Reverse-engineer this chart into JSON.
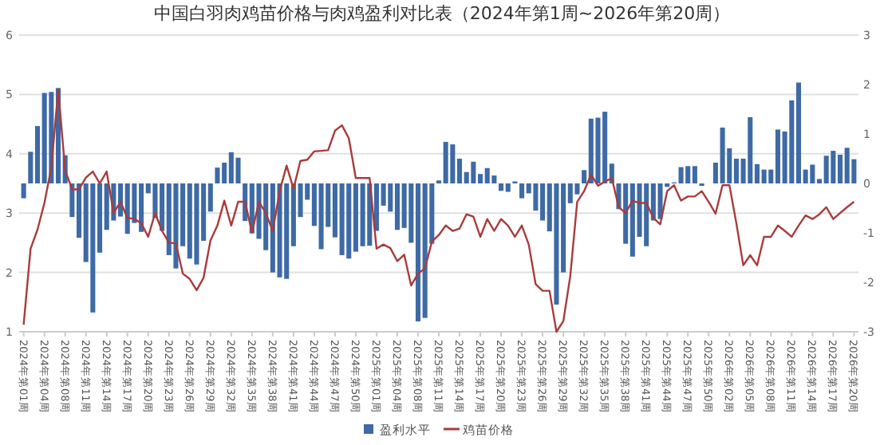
{
  "chart_data": {
    "type": "bar",
    "title": "中国白羽肉鸡苗价格与肉鸡盈利对比表（2024年第1周~2026年第20周）",
    "categories": [
      "2024年第01周",
      null,
      null,
      "2024年第04周",
      null,
      null,
      "2024年第08周",
      null,
      null,
      "2024年第11周",
      null,
      null,
      "2024年第14周",
      null,
      null,
      "2024年第17周",
      null,
      null,
      "2024年第20周",
      null,
      null,
      "2024年第23周",
      null,
      null,
      "2024年第26周",
      null,
      null,
      "2024年第29周",
      null,
      null,
      "2024年第32周",
      null,
      null,
      "2024年第35周",
      null,
      null,
      "2024年第38周",
      null,
      null,
      "2024年第41周",
      null,
      null,
      "2024年第44周",
      null,
      null,
      "2024年第47周",
      null,
      null,
      "2024年第50周",
      null,
      null,
      "2025年第01周",
      null,
      null,
      "2025年第04周",
      null,
      null,
      "2025年第08周",
      null,
      null,
      "2025年第11周",
      null,
      null,
      "2025年第14周",
      null,
      null,
      "2025年第17周",
      null,
      null,
      "2025年第20周",
      null,
      null,
      "2025年第23周",
      null,
      null,
      "2025年第26周",
      null,
      null,
      "2025年第29周",
      null,
      null,
      "2025年第32周",
      null,
      null,
      "2025年第35周",
      null,
      null,
      "2025年第38周",
      null,
      null,
      "2025年第41周",
      null,
      null,
      "2025年第44周",
      null,
      null,
      "2025年第47周",
      null,
      null,
      "2025年第50周",
      null,
      null,
      "2026年第02周",
      null,
      null,
      "2026年第05周",
      null,
      null,
      "2026年第08周",
      null,
      null,
      "2026年第11周",
      null,
      null,
      "2026年第14周",
      null,
      null,
      "2026年第17周",
      null,
      null,
      "2026年第20周"
    ],
    "series": [
      {
        "name": "盈利水平",
        "axis": "y2",
        "color": "#3e6aa5",
        "values": [
          -0.3,
          0.64,
          1.16,
          1.83,
          1.85,
          1.93,
          0.57,
          -0.68,
          -1.1,
          -1.59,
          -2.61,
          -1.4,
          -0.94,
          -0.75,
          -0.67,
          -1.02,
          -0.8,
          -0.98,
          -0.2,
          -0.7,
          -0.96,
          -1.45,
          -1.72,
          -1.27,
          -1.52,
          -1.64,
          -1.16,
          -0.57,
          0.32,
          0.42,
          0.63,
          0.52,
          -0.76,
          -1.01,
          -1.12,
          -1.35,
          -1.8,
          -1.9,
          -1.93,
          -1.27,
          -0.68,
          -0.33,
          -0.86,
          -1.33,
          -0.88,
          -1.09,
          -1.45,
          -1.52,
          -1.38,
          -1.27,
          -1.26,
          -0.96,
          -0.45,
          -0.57,
          -0.94,
          -0.9,
          -1.2,
          -2.79,
          -2.72,
          -1.22,
          0.06,
          0.84,
          0.79,
          0.5,
          0.23,
          0.44,
          0.19,
          0.31,
          0.16,
          -0.15,
          -0.17,
          0.04,
          -0.3,
          -0.2,
          -0.55,
          -0.75,
          -0.97,
          -2.45,
          -1.8,
          -0.4,
          -0.22,
          0.27,
          1.31,
          1.33,
          1.45,
          0.4,
          -0.52,
          -1.22,
          -1.48,
          -1.08,
          -1.27,
          -0.75,
          -0.72,
          -0.07,
          0.02,
          0.33,
          0.35,
          0.35,
          -0.05,
          0.0,
          0.42,
          1.13,
          0.71,
          0.5,
          0.5,
          1.34,
          0.39,
          0.28,
          0.28,
          1.09,
          1.05,
          1.68,
          2.04,
          0.28,
          0.38,
          0.09,
          0.56,
          0.66,
          0.58,
          0.72,
          0.49
        ]
      },
      {
        "name": "鸡苗价格",
        "type": "line",
        "axis": "y",
        "color": "#a83c3c",
        "values": [
          1.12,
          2.4,
          2.72,
          3.17,
          3.77,
          5.08,
          3.72,
          3.4,
          3.4,
          3.6,
          3.7,
          3.5,
          3.7,
          3.0,
          3.19,
          2.92,
          2.9,
          2.83,
          2.6,
          3.0,
          2.7,
          2.5,
          2.49,
          1.98,
          1.89,
          1.7,
          1.91,
          2.54,
          2.79,
          3.21,
          2.79,
          3.19,
          3.19,
          2.67,
          3.19,
          3.0,
          2.7,
          3.37,
          3.8,
          3.41,
          3.88,
          3.9,
          4.04,
          4.05,
          4.06,
          4.39,
          4.48,
          4.26,
          3.59,
          3.59,
          3.59,
          2.4,
          2.47,
          2.41,
          2.19,
          2.3,
          1.78,
          1.98,
          2.07,
          2.52,
          2.63,
          2.79,
          2.7,
          2.74,
          2.98,
          2.94,
          2.6,
          2.9,
          2.7,
          2.9,
          2.79,
          2.6,
          2.79,
          2.47,
          1.8,
          1.69,
          1.69,
          1.0,
          1.18,
          1.94,
          3.19,
          3.37,
          3.65,
          3.46,
          3.53,
          3.59,
          3.1,
          3.0,
          3.21,
          3.17,
          3.17,
          2.92,
          2.81,
          3.37,
          3.47,
          3.21,
          3.28,
          3.28,
          3.37,
          3.19,
          2.99,
          3.47,
          3.47,
          2.83,
          2.12,
          2.29,
          2.12,
          2.6,
          2.6,
          2.79,
          2.7,
          2.6,
          2.79,
          2.96,
          2.9,
          2.98,
          3.1,
          2.9,
          3.0,
          3.1,
          3.19
        ]
      }
    ],
    "ylim": [
      1,
      6
    ],
    "yticks": [
      1,
      2,
      3,
      4,
      5,
      6
    ],
    "y2lim": [
      -3,
      3
    ],
    "y2ticks": [
      -3,
      -2,
      -1,
      0,
      1,
      2,
      3
    ],
    "grid": "y",
    "legend": "bottom"
  }
}
